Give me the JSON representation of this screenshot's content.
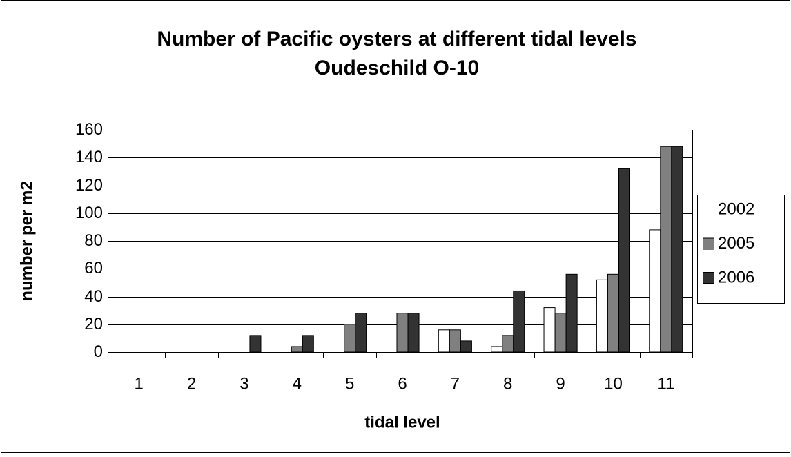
{
  "chart_data": {
    "type": "bar",
    "title": "Number of Pacific oysters at different tidal levels",
    "subtitle": "Oudeschild O-10",
    "x_label": "tidal level",
    "y_label": "number per m2",
    "categories": [
      "1",
      "2",
      "3",
      "4",
      "5",
      "6",
      "7",
      "8",
      "9",
      "10",
      "11"
    ],
    "series": [
      {
        "name": "2002",
        "color": "#ffffff",
        "values": [
          0,
          0,
          0,
          0,
          0,
          0,
          16,
          4,
          32,
          52,
          88
        ]
      },
      {
        "name": "2005",
        "color": "#808080",
        "values": [
          0,
          0,
          0,
          4,
          20,
          28,
          16,
          12,
          28,
          56,
          148
        ]
      },
      {
        "name": "2006",
        "color": "#333333",
        "values": [
          0,
          0,
          12,
          12,
          28,
          28,
          8,
          44,
          56,
          132,
          148
        ]
      }
    ],
    "ylim": [
      0,
      160
    ],
    "yticks": [
      0,
      20,
      40,
      60,
      80,
      100,
      120,
      140,
      160
    ],
    "grid": true,
    "legend": "right"
  }
}
